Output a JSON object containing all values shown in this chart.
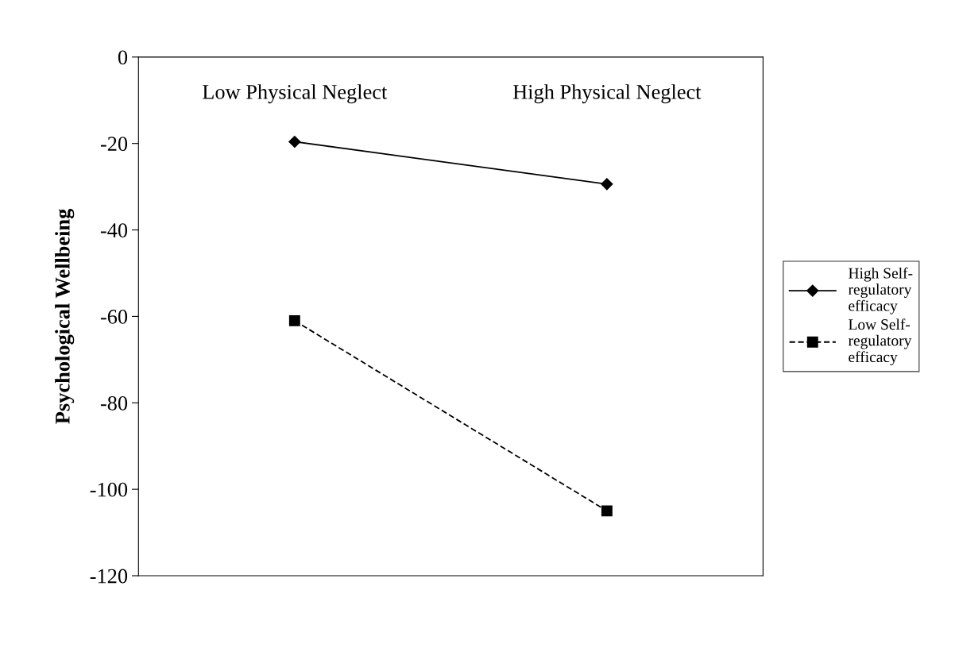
{
  "chart_data": {
    "type": "line",
    "ylabel": "Psychological Wellbeing",
    "categories": [
      "Low Physical Neglect",
      "High Physical Neglect"
    ],
    "series": [
      {
        "name": "High Self-regulatory efficacy",
        "color": "#000000",
        "values": [
          -19.6,
          -29.4
        ],
        "marker": "diamond",
        "line_style": "solid"
      },
      {
        "name": "Low Self-regulatory efficacy",
        "color": "#000000",
        "values": [
          -61,
          -105
        ],
        "marker": "square",
        "line_style": "dashed"
      }
    ],
    "ylim": [
      -120,
      0
    ],
    "yticks": [
      -120,
      -100,
      -80,
      -60,
      -40,
      -20,
      0
    ],
    "grid": false,
    "legend": "right"
  }
}
